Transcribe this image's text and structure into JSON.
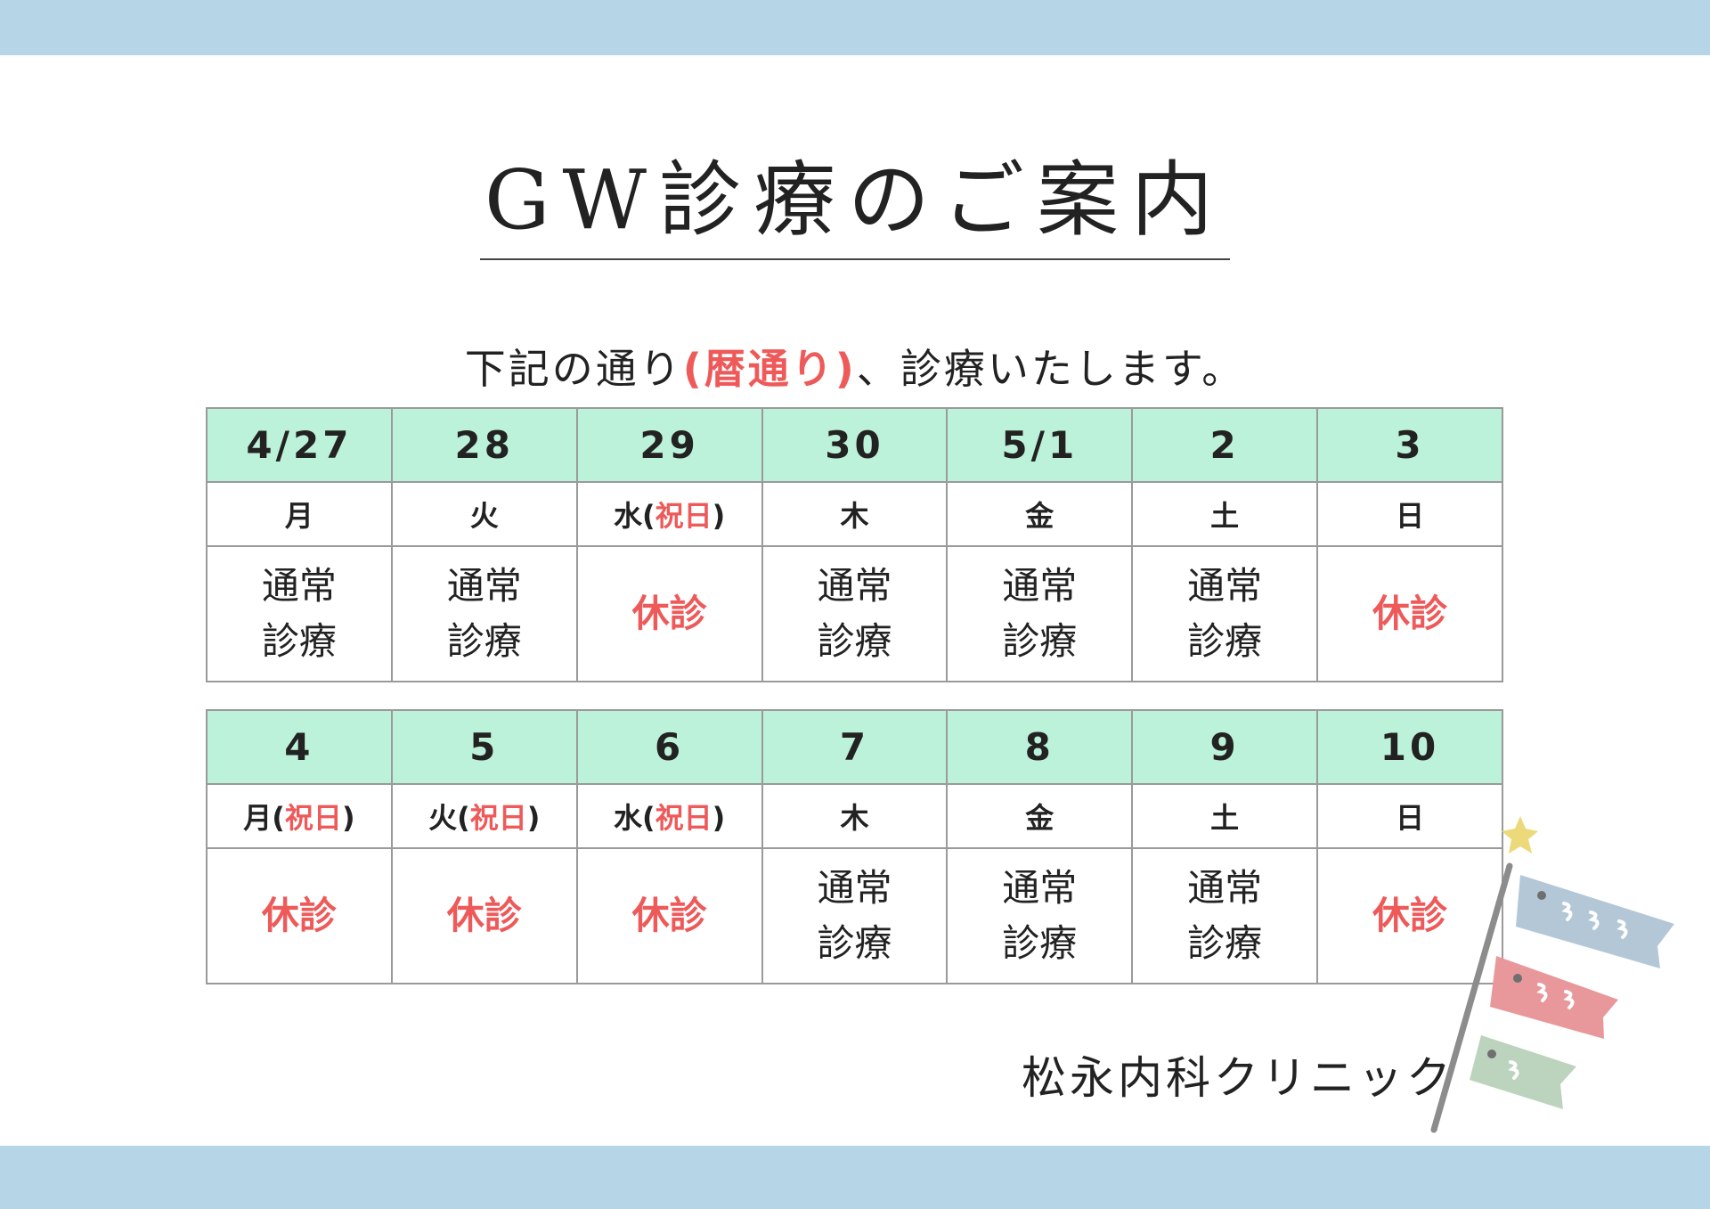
{
  "title": "GW診療のご案内",
  "subtitle": {
    "before": "下記の通り",
    "highlight": "(暦通り)",
    "after": "、診療いたします。"
  },
  "colors": {
    "band": "#b6d6e8",
    "header": "#bdf2da",
    "closed": "#ee5a5a"
  },
  "weeks": [
    {
      "days": [
        {
          "date": "4/27",
          "dow": "月",
          "holiday": "",
          "status": [
            "通常",
            "診療"
          ],
          "closed": false
        },
        {
          "date": "28",
          "dow": "火",
          "holiday": "",
          "status": [
            "通常",
            "診療"
          ],
          "closed": false
        },
        {
          "date": "29",
          "dow": "水",
          "holiday": "祝日",
          "status": [
            "休診"
          ],
          "closed": true
        },
        {
          "date": "30",
          "dow": "木",
          "holiday": "",
          "status": [
            "通常",
            "診療"
          ],
          "closed": false
        },
        {
          "date": "5/1",
          "dow": "金",
          "holiday": "",
          "status": [
            "通常",
            "診療"
          ],
          "closed": false
        },
        {
          "date": "2",
          "dow": "土",
          "holiday": "",
          "status": [
            "通常",
            "診療"
          ],
          "closed": false
        },
        {
          "date": "3",
          "dow": "日",
          "holiday": "",
          "status": [
            "休診"
          ],
          "closed": true
        }
      ]
    },
    {
      "days": [
        {
          "date": "4",
          "dow": "月",
          "holiday": "祝日",
          "status": [
            "休診"
          ],
          "closed": true
        },
        {
          "date": "5",
          "dow": "火",
          "holiday": "祝日",
          "status": [
            "休診"
          ],
          "closed": true
        },
        {
          "date": "6",
          "dow": "水",
          "holiday": "祝日",
          "status": [
            "休診"
          ],
          "closed": true
        },
        {
          "date": "7",
          "dow": "木",
          "holiday": "",
          "status": [
            "通常",
            "診療"
          ],
          "closed": false
        },
        {
          "date": "8",
          "dow": "金",
          "holiday": "",
          "status": [
            "通常",
            "診療"
          ],
          "closed": false
        },
        {
          "date": "9",
          "dow": "土",
          "holiday": "",
          "status": [
            "通常",
            "診療"
          ],
          "closed": false
        },
        {
          "date": "10",
          "dow": "日",
          "holiday": "",
          "status": [
            "休診"
          ],
          "closed": true
        }
      ]
    }
  ],
  "clinic_name": "松永内科クリニック",
  "decoration": "koinobori-illustration"
}
